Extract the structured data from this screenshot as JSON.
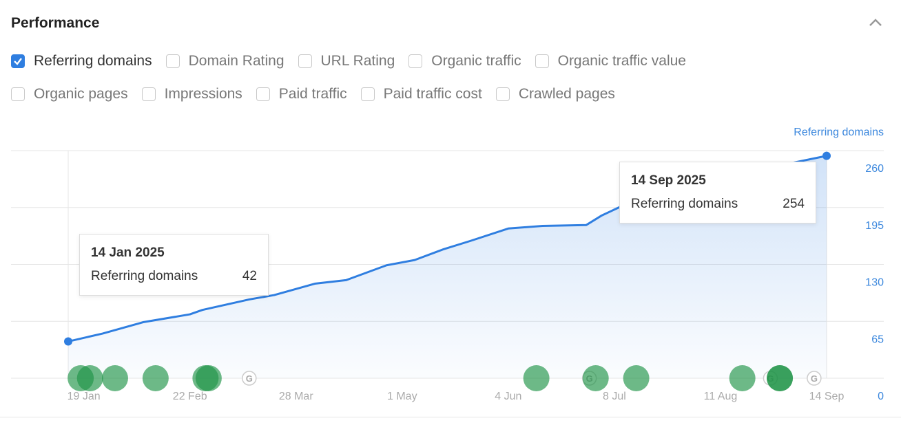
{
  "header": {
    "title": "Performance",
    "collapse_icon": "chevron-up-icon"
  },
  "metrics": [
    {
      "label": "Referring domains",
      "checked": true
    },
    {
      "label": "Domain Rating",
      "checked": false
    },
    {
      "label": "URL Rating",
      "checked": false
    },
    {
      "label": "Organic traffic",
      "checked": false
    },
    {
      "label": "Organic traffic value",
      "checked": false
    },
    {
      "label": "Organic pages",
      "checked": false
    },
    {
      "label": "Impressions",
      "checked": false
    },
    {
      "label": "Paid traffic",
      "checked": false
    },
    {
      "label": "Paid traffic cost",
      "checked": false
    },
    {
      "label": "Crawled pages",
      "checked": false
    }
  ],
  "tooltips": [
    {
      "date": "14 Jan 2025",
      "label": "Referring domains",
      "value": "42"
    },
    {
      "date": "14 Sep 2025",
      "label": "Referring domains",
      "value": "254"
    }
  ],
  "chart_data": {
    "type": "area",
    "series": [
      {
        "name": "Referring domains",
        "color": "#2f7ee0",
        "x": [
          "2025-01-14",
          "2025-01-25",
          "2025-02-07",
          "2025-02-22",
          "2025-02-26",
          "2025-03-13",
          "2025-03-21",
          "2025-04-03",
          "2025-04-13",
          "2025-04-26",
          "2025-05-05",
          "2025-05-14",
          "2025-05-23",
          "2025-06-04",
          "2025-06-15",
          "2025-06-29",
          "2025-07-04",
          "2025-07-10",
          "2025-08-01",
          "2025-08-20",
          "2025-09-03",
          "2025-09-14"
        ],
        "y": [
          42,
          51,
          64,
          73,
          78,
          90,
          95,
          108,
          112,
          129,
          135,
          147,
          157,
          171,
          174,
          175,
          186,
          196,
          215,
          232,
          246,
          254
        ]
      }
    ],
    "x_ticks": [
      "19 Jan",
      "22 Feb",
      "28 Mar",
      "1 May",
      "4 Jun",
      "8 Jul",
      "11 Aug",
      "14 Sep"
    ],
    "x_tick_dates": [
      "2025-01-19",
      "2025-02-22",
      "2025-03-28",
      "2025-05-01",
      "2025-06-04",
      "2025-07-08",
      "2025-08-11",
      "2025-09-14"
    ],
    "y_ticks": [
      0,
      65,
      130,
      195,
      260
    ],
    "ylim": [
      0,
      260
    ],
    "xlim": [
      "2025-01-14",
      "2025-09-14"
    ],
    "y_axis_label": "Referring domains",
    "y_axis_position": "right",
    "grid": true,
    "event_markers": {
      "color": "#1f9447",
      "dates": [
        "2025-01-18",
        "2025-01-21",
        "2025-01-29",
        "2025-02-11",
        "2025-02-27",
        "2025-02-28",
        "2025-06-13",
        "2025-07-02",
        "2025-07-15",
        "2025-08-18",
        "2025-08-30",
        "2025-08-30"
      ]
    },
    "google_update_markers": {
      "icon": "google-g-icon",
      "label": "G",
      "dates": [
        "2025-03-13",
        "2025-06-30",
        "2025-08-27",
        "2025-09-10"
      ]
    }
  }
}
